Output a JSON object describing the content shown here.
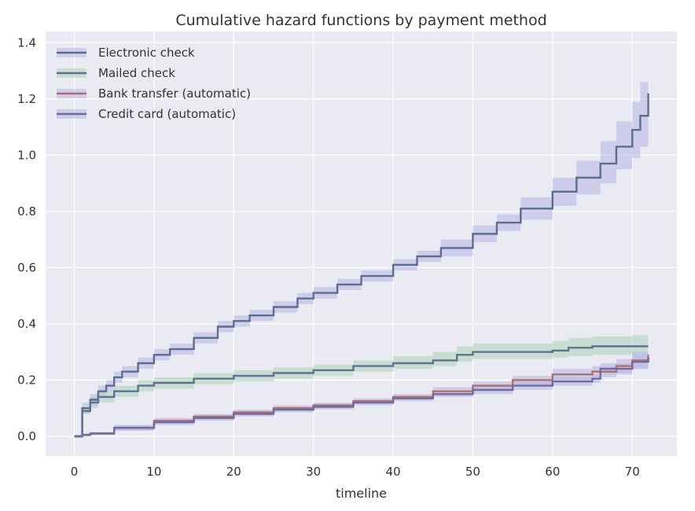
{
  "chart_data": {
    "type": "line",
    "title": "Cumulative hazard functions by payment method",
    "xlabel": "timeline",
    "ylabel": "",
    "xlim": [
      -3.6,
      75.6
    ],
    "ylim": [
      -0.07,
      1.44
    ],
    "x_ticks": [
      0,
      10,
      20,
      30,
      40,
      50,
      60,
      70
    ],
    "y_ticks": [
      0.0,
      0.2,
      0.4,
      0.6,
      0.8,
      1.0,
      1.2,
      1.4
    ],
    "x_tick_labels": [
      "0",
      "10",
      "20",
      "30",
      "40",
      "50",
      "60",
      "70"
    ],
    "y_tick_labels": [
      "0.0",
      "0.2",
      "0.4",
      "0.6",
      "0.8",
      "1.0",
      "1.2",
      "1.4"
    ],
    "grid": true,
    "legend_position": "top-left",
    "step": true,
    "series": [
      {
        "name": "Electronic check",
        "color": "#5b6f8c",
        "band_color": "#b4b4e6",
        "x": [
          0,
          1,
          2,
          3,
          4,
          5,
          6,
          8,
          10,
          12,
          15,
          18,
          20,
          22,
          25,
          28,
          30,
          33,
          36,
          40,
          43,
          46,
          50,
          53,
          56,
          60,
          63,
          66,
          68,
          70,
          71,
          72
        ],
        "y": [
          0.0,
          0.1,
          0.13,
          0.16,
          0.18,
          0.21,
          0.23,
          0.26,
          0.29,
          0.31,
          0.35,
          0.39,
          0.41,
          0.43,
          0.46,
          0.49,
          0.51,
          0.54,
          0.57,
          0.61,
          0.64,
          0.67,
          0.72,
          0.76,
          0.81,
          0.87,
          0.92,
          0.97,
          1.03,
          1.09,
          1.14,
          1.22
        ],
        "lower": [
          0.0,
          0.08,
          0.11,
          0.14,
          0.16,
          0.19,
          0.21,
          0.24,
          0.27,
          0.29,
          0.33,
          0.37,
          0.39,
          0.41,
          0.44,
          0.47,
          0.49,
          0.52,
          0.55,
          0.59,
          0.62,
          0.64,
          0.69,
          0.73,
          0.77,
          0.82,
          0.86,
          0.9,
          0.95,
          0.99,
          1.03,
          1.07
        ],
        "upper": [
          0.0,
          0.12,
          0.15,
          0.18,
          0.2,
          0.23,
          0.25,
          0.28,
          0.31,
          0.33,
          0.37,
          0.41,
          0.43,
          0.45,
          0.48,
          0.51,
          0.53,
          0.56,
          0.59,
          0.63,
          0.66,
          0.7,
          0.75,
          0.79,
          0.85,
          0.92,
          0.98,
          1.05,
          1.12,
          1.19,
          1.26,
          1.37
        ]
      },
      {
        "name": "Mailed check",
        "color": "#5f7390",
        "band_color": "#a9d2b6",
        "x": [
          0,
          1,
          2,
          3,
          5,
          8,
          10,
          15,
          20,
          25,
          30,
          35,
          40,
          45,
          48,
          50,
          55,
          60,
          62,
          65,
          70,
          72
        ],
        "y": [
          0.0,
          0.09,
          0.12,
          0.14,
          0.16,
          0.18,
          0.19,
          0.205,
          0.215,
          0.225,
          0.235,
          0.25,
          0.26,
          0.27,
          0.29,
          0.3,
          0.3,
          0.305,
          0.315,
          0.32,
          0.32,
          0.32
        ],
        "lower": [
          0.0,
          0.08,
          0.1,
          0.12,
          0.14,
          0.16,
          0.17,
          0.185,
          0.195,
          0.205,
          0.215,
          0.23,
          0.24,
          0.25,
          0.265,
          0.275,
          0.275,
          0.28,
          0.285,
          0.29,
          0.29,
          0.28
        ],
        "upper": [
          0.0,
          0.1,
          0.14,
          0.16,
          0.18,
          0.2,
          0.21,
          0.225,
          0.235,
          0.245,
          0.255,
          0.27,
          0.285,
          0.3,
          0.32,
          0.33,
          0.33,
          0.34,
          0.35,
          0.355,
          0.36,
          0.36
        ]
      },
      {
        "name": "Bank transfer (automatic)",
        "color": "#b56c6c",
        "band_color": "#b4b4e6",
        "x": [
          0,
          1,
          2,
          5,
          10,
          15,
          20,
          25,
          30,
          35,
          40,
          45,
          50,
          55,
          60,
          65,
          68,
          70,
          72
        ],
        "y": [
          0.0,
          0.005,
          0.01,
          0.03,
          0.055,
          0.07,
          0.085,
          0.1,
          0.11,
          0.125,
          0.14,
          0.16,
          0.18,
          0.2,
          0.22,
          0.23,
          0.25,
          0.27,
          0.29
        ],
        "lower": [
          0.0,
          0.0,
          0.005,
          0.02,
          0.045,
          0.06,
          0.075,
          0.09,
          0.1,
          0.115,
          0.13,
          0.145,
          0.165,
          0.185,
          0.2,
          0.21,
          0.225,
          0.24,
          0.255
        ],
        "upper": [
          0.0,
          0.01,
          0.015,
          0.04,
          0.065,
          0.08,
          0.095,
          0.11,
          0.12,
          0.135,
          0.15,
          0.175,
          0.195,
          0.215,
          0.24,
          0.25,
          0.275,
          0.3,
          0.325
        ]
      },
      {
        "name": "Credit card (automatic)",
        "color": "#6f6c9c",
        "band_color": "#b4b4e6",
        "x": [
          0,
          1,
          2,
          5,
          10,
          15,
          20,
          25,
          30,
          35,
          40,
          45,
          50,
          55,
          60,
          65,
          66,
          70,
          72
        ],
        "y": [
          0.0,
          0.005,
          0.01,
          0.03,
          0.05,
          0.065,
          0.08,
          0.095,
          0.105,
          0.12,
          0.135,
          0.15,
          0.165,
          0.18,
          0.195,
          0.205,
          0.24,
          0.265,
          0.28
        ],
        "lower": [
          0.0,
          0.0,
          0.005,
          0.02,
          0.04,
          0.055,
          0.07,
          0.085,
          0.095,
          0.11,
          0.125,
          0.14,
          0.15,
          0.165,
          0.18,
          0.19,
          0.22,
          0.24,
          0.25
        ],
        "upper": [
          0.0,
          0.01,
          0.015,
          0.04,
          0.06,
          0.075,
          0.09,
          0.105,
          0.115,
          0.13,
          0.145,
          0.16,
          0.18,
          0.195,
          0.21,
          0.22,
          0.26,
          0.29,
          0.31
        ]
      }
    ]
  }
}
